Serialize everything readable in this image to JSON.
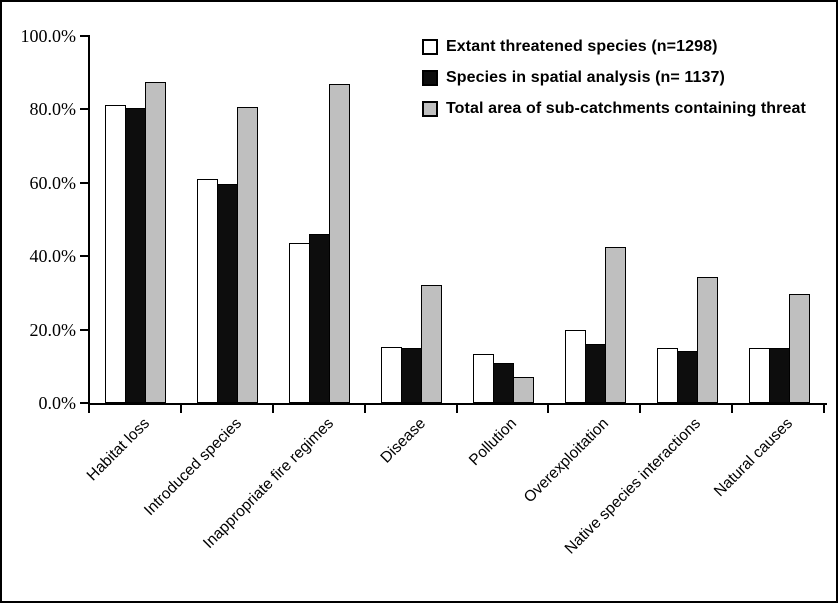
{
  "figure": {
    "background": "#FFFFFF",
    "border_color": "#000000",
    "axis_color": "#000000"
  },
  "chart_data": {
    "type": "bar",
    "title": "",
    "xlabel": "",
    "ylabel": "",
    "categories": [
      "Habitat loss",
      "Introduced species",
      "Inappropriate fire regimes",
      "Disease",
      "Pollution",
      "Overexploitation",
      "Native species interactions",
      "Natural causes"
    ],
    "series": [
      {
        "name": "Extant threatened species (n=1298)",
        "fill": "#FFFFFF",
        "values": [
          81.1,
          61.1,
          43.6,
          15.4,
          13.4,
          19.9,
          14.9,
          15.0
        ]
      },
      {
        "name": "Species in spatial analysis (n= 1137)",
        "fill": "#0D0D0D",
        "values": [
          80.3,
          59.8,
          46.0,
          14.9,
          11.0,
          16.0,
          14.1,
          14.9
        ]
      },
      {
        "name": "Total area of sub-catchments containing threat",
        "fill": "#BFBFBF",
        "values": [
          87.5,
          80.8,
          86.8,
          32.2,
          7.2,
          42.4,
          34.3,
          29.6
        ]
      }
    ],
    "ylim": [
      0,
      100
    ],
    "ytick_step": 20,
    "ytick_labels": [
      "0.0%",
      "20.0%",
      "40.0%",
      "60.0%",
      "80.0%",
      "100.0%"
    ],
    "grid": false,
    "bar_outline": "#000000",
    "legend_position": "top-right-inside"
  }
}
